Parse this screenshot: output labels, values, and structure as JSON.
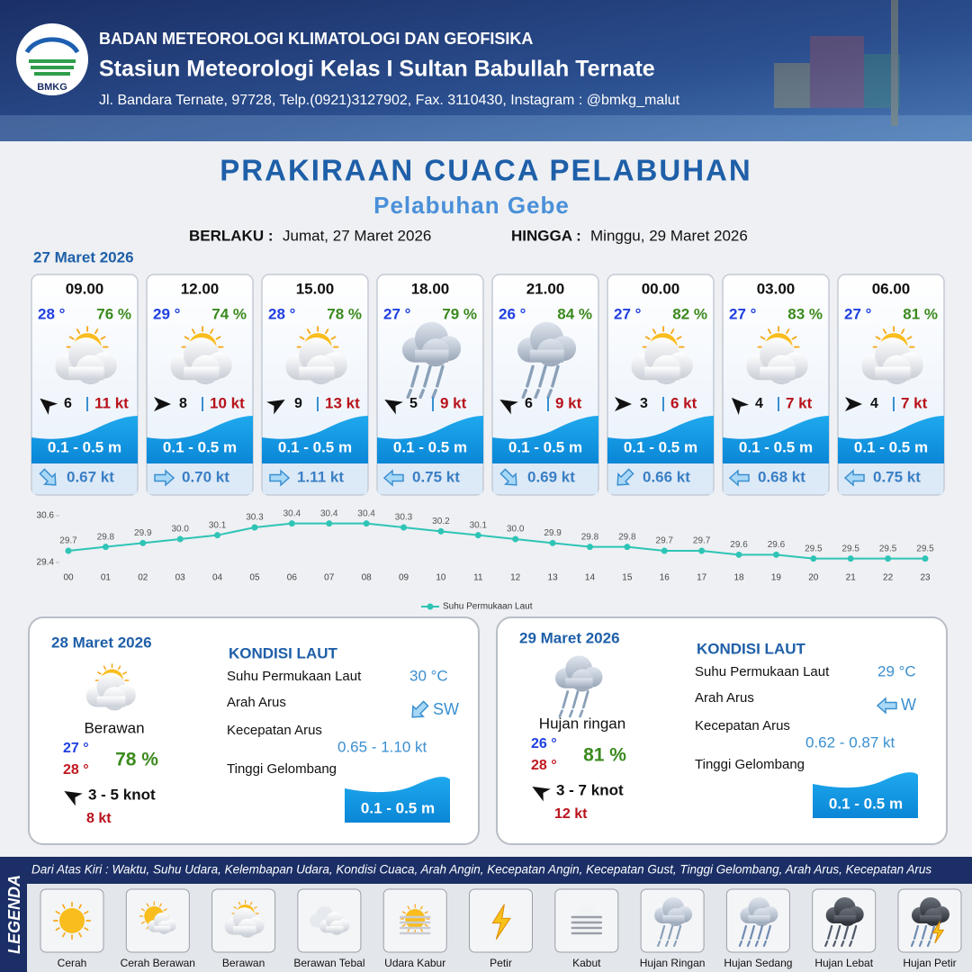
{
  "header": {
    "logo_text": "BMKG",
    "agency": "BADAN METEOROLOGI KLIMATOLOGI DAN GEOFISIKA",
    "station": "Stasiun Meteorologi Kelas I Sultan Babullah Ternate",
    "address": "Jl. Bandara Ternate, 97728, Telp.(0921)3127902, Fax. 3110430, Instagram : @bmkg_malut"
  },
  "title": "PRAKIRAAN CUACA PELABUHAN",
  "port": "Pelabuhan Gebe",
  "validity": {
    "from_label": "BERLAKU :",
    "from": "Jumat, 27 Maret 2026",
    "to_label": "HINGGA :",
    "to": "Minggu, 29 Maret 2026"
  },
  "today": {
    "date": "27 Maret 2026",
    "forecasts": [
      {
        "time": "09.00",
        "temp": "28 °",
        "humidity": "76 %",
        "wind": "6",
        "gust": "11 kt",
        "wave": "0.1 - 0.5 m",
        "current": "0.67 kt"
      },
      {
        "time": "12.00",
        "temp": "29 °",
        "humidity": "74 %",
        "wind": "8",
        "gust": "10 kt",
        "wave": "0.1 - 0.5 m",
        "current": "0.70 kt"
      },
      {
        "time": "15.00",
        "temp": "28 °",
        "humidity": "78 %",
        "wind": "9",
        "gust": "13 kt",
        "wave": "0.1 - 0.5 m",
        "current": "1.11 kt"
      },
      {
        "time": "18.00",
        "temp": "27 °",
        "humidity": "79 %",
        "wind": "5",
        "gust": "9 kt",
        "wave": "0.1 - 0.5 m",
        "current": "0.75 kt"
      },
      {
        "time": "21.00",
        "temp": "26 °",
        "humidity": "84 %",
        "wind": "6",
        "gust": "9 kt",
        "wave": "0.1 - 0.5 m",
        "current": "0.69 kt"
      },
      {
        "time": "00.00",
        "temp": "27 °",
        "humidity": "82 %",
        "wind": "3",
        "gust": "6 kt",
        "wave": "0.1 - 0.5 m",
        "current": "0.66 kt"
      },
      {
        "time": "03.00",
        "temp": "27 °",
        "humidity": "83 %",
        "wind": "4",
        "gust": "7 kt",
        "wave": "0.1 - 0.5 m",
        "current": "0.68 kt"
      },
      {
        "time": "06.00",
        "temp": "27 °",
        "humidity": "81 %",
        "wind": "4",
        "gust": "7 kt",
        "wave": "0.1 - 0.5 m",
        "current": "0.75 kt"
      }
    ]
  },
  "chart_data": {
    "type": "line",
    "categories": [
      "00",
      "01",
      "02",
      "03",
      "04",
      "05",
      "06",
      "07",
      "08",
      "09",
      "10",
      "11",
      "12",
      "13",
      "14",
      "15",
      "16",
      "17",
      "18",
      "19",
      "20",
      "21",
      "22",
      "23"
    ],
    "series": [
      {
        "name": "Suhu Permukaan Laut",
        "color": "#2ec4b6",
        "values": [
          29.7,
          29.8,
          29.9,
          30.0,
          30.1,
          30.3,
          30.4,
          30.4,
          30.4,
          30.3,
          30.2,
          30.1,
          30.0,
          29.9,
          29.8,
          29.8,
          29.7,
          29.7,
          29.6,
          29.6,
          29.5,
          29.5,
          29.5,
          29.5
        ],
        "value_labels": [
          "29.7",
          "29.8",
          "29.9",
          "30.0",
          "30.1",
          "30.3",
          "30.4",
          "30.4",
          "30.4",
          "30.3",
          "30.2",
          "30.1",
          "30.0",
          "29.9",
          "29.8",
          "29.8",
          "29.7",
          "29.7",
          "29.6",
          "29.6",
          "29.5",
          "29.5",
          "29.5",
          "29.5"
        ]
      }
    ],
    "ylim": [
      29.4,
      30.6
    ],
    "yticks": [
      29.4,
      30.6
    ],
    "legend": "bottom"
  },
  "daily": [
    {
      "date": "28 Maret 2026",
      "condition": "Berawan",
      "temp_min": "27 °",
      "temp_max": "28 °",
      "humidity": "78 %",
      "wind": "3  - 5 knot",
      "gust": "8 kt",
      "kondisi_title": "KONDISI LAUT",
      "sst_label": "Suhu Permukaan Laut",
      "sst": "30 °C",
      "dir_label": "Arah Arus",
      "dir": "SW",
      "speed_label": "Kecepatan Arus",
      "speed": "0.65  - 1.10 kt",
      "wave_label": "Tinggi Gelombang",
      "wave": "0.1 - 0.5 m"
    },
    {
      "date": "29 Maret 2026",
      "condition": "Hujan ringan",
      "temp_min": "26 °",
      "temp_max": "28 °",
      "humidity": "81 %",
      "wind": "3  - 7 knot",
      "gust": "12 kt",
      "kondisi_title": "KONDISI LAUT",
      "sst_label": "Suhu Permukaan Laut",
      "sst": "29 °C",
      "dir_label": "Arah Arus",
      "dir": "W",
      "speed_label": "Kecepatan Arus",
      "speed": "0.62  - 0.87 kt",
      "wave_label": "Tinggi Gelombang",
      "wave": "0.1 - 0.5 m"
    }
  ],
  "legend": {
    "title": "LEGENDA",
    "note": "Dari Atas Kiri : Waktu, Suhu Udara, Kelembapan Udara, Kondisi Cuaca, Arah Angin, Kecepatan Angin, Kecepatan Gust, Tinggi Gelombang, Arah Arus, Kecepatan Arus",
    "items": [
      "Cerah",
      "Cerah Berawan",
      "Berawan",
      "Berawan Tebal",
      "Udara Kabur",
      "Petir",
      "Kabut",
      "Hujan Ringan",
      "Hujan Sedang",
      "Hujan Lebat",
      "Hujan Petir"
    ]
  }
}
